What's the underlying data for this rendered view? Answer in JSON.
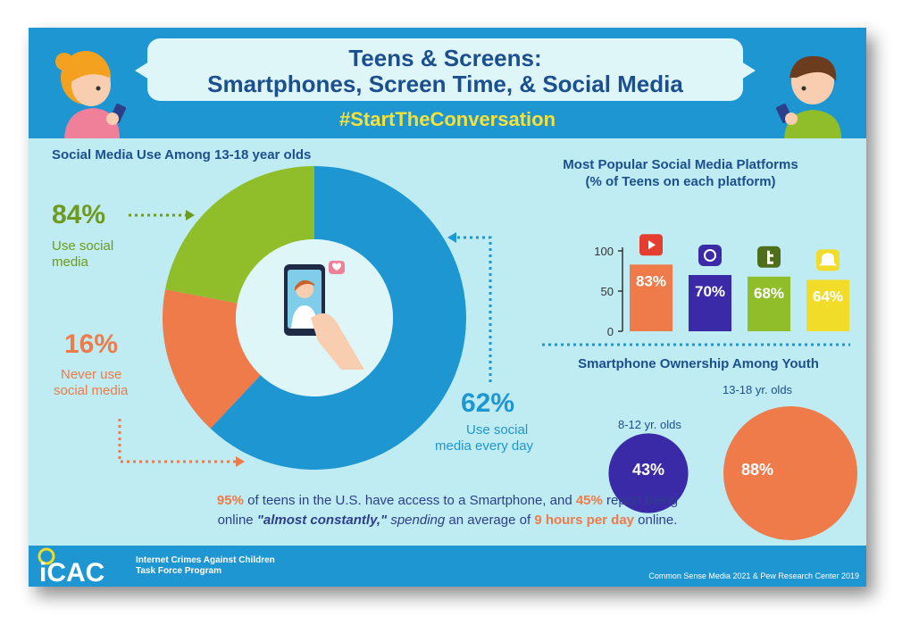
{
  "header": {
    "title_line1": "Teens & Screens:",
    "title_line2": "Smartphones, Screen Time, & Social Media",
    "hashtag": "#StartTheConversation"
  },
  "donut": {
    "title": "Social Media Use Among 13-18 year olds",
    "use_pct": "84%",
    "use_label_1": "Use social",
    "use_label_2": "media",
    "never_pct": "16%",
    "never_label_1": "Never use",
    "never_label_2": "social media",
    "daily_pct": "62%",
    "daily_label_1": "Use social",
    "daily_label_2": "media every day"
  },
  "platforms": {
    "title_1": "Most Popular Social Media Platforms",
    "title_2": "(% of Teens on each platform)",
    "icons": [
      "youtube-icon",
      "instagram-icon",
      "tiktok-icon",
      "snapchat-icon"
    ]
  },
  "ownership": {
    "title": "Smartphone Ownership Among Youth",
    "group1_label": "8-12 yr. olds",
    "group1_pct": "43%",
    "group2_label": "13-18 yr. olds",
    "group2_pct": "88%"
  },
  "bottom": {
    "p1": "95%",
    "t1": " of teens in the U.S. have access to a Smartphone, and ",
    "p2": "45%",
    "t2": " report being",
    "t3": "online ",
    "quote": "\"almost constantly,\"",
    "spending": " spending",
    "t4": " an average of ",
    "p3": "9 hours per day",
    "t5": " online."
  },
  "footer": {
    "logo_text": "iCAC",
    "org_line1": "Internet Crimes Against Children",
    "org_line2": "Task Force Program",
    "source": "Common Sense Media 2021 & Pew Research Center 2019"
  },
  "colors": {
    "blue": "#1e96d1",
    "green": "#8fbe2a",
    "orange": "#ef7a4a",
    "navy": "#2d3f8a",
    "purple": "#3a2aa8",
    "yellow": "#f2dc2a"
  },
  "chart_data": [
    {
      "type": "pie",
      "title": "Social Media Use Among 13-18 year olds",
      "categories": [
        "Use social media every day",
        "Never use social media",
        "Use social media (not daily)"
      ],
      "values": [
        62,
        16,
        22
      ]
    },
    {
      "type": "bar",
      "title": "Most Popular Social Media Platforms (% of Teens on each platform)",
      "categories": [
        "YouTube",
        "Instagram",
        "TikTok",
        "Snapchat"
      ],
      "values": [
        83,
        70,
        68,
        64
      ],
      "ylim": [
        0,
        100
      ],
      "yticks": [
        0,
        50,
        100
      ]
    },
    {
      "type": "scatter",
      "title": "Smartphone Ownership Among Youth",
      "categories": [
        "8-12 yr. olds",
        "13-18 yr. olds"
      ],
      "values": [
        43,
        88
      ]
    }
  ]
}
